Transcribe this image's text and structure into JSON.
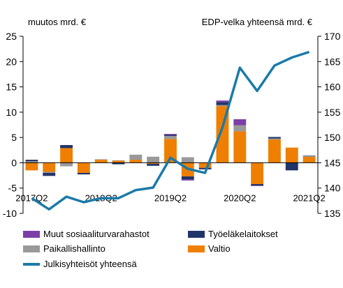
{
  "chart_data": {
    "type": "bar",
    "stacked": true,
    "left_axis": {
      "label": "muutos mrd. €",
      "ylim": [
        -10,
        25
      ],
      "ticks": [
        -10,
        -5,
        0,
        5,
        10,
        15,
        20,
        25
      ]
    },
    "right_axis": {
      "label": "EDP-velka yhteensä  mrd. €",
      "ylim": [
        135,
        170
      ],
      "ticks": [
        135,
        140,
        145,
        150,
        155,
        160,
        165,
        170
      ]
    },
    "categories": [
      "2017Q2",
      "2017Q3",
      "2017Q4",
      "2018Q1",
      "2018Q2",
      "2018Q3",
      "2018Q4",
      "2019Q1",
      "2019Q2",
      "2019Q3",
      "2019Q4",
      "2020Q1",
      "2020Q2",
      "2020Q3",
      "2020Q4",
      "2021Q1",
      "2021Q2"
    ],
    "x_tick_labels": [
      {
        "index": 0,
        "label": "2017Q2"
      },
      {
        "index": 4,
        "label": "2018Q2"
      },
      {
        "index": 8,
        "label": "2019Q2"
      },
      {
        "index": 12,
        "label": "2020Q2"
      },
      {
        "index": 16,
        "label": "2021Q2"
      }
    ],
    "series": [
      {
        "name": "Valtio",
        "color": "#ee7f00",
        "axis": "left",
        "values": [
          -1.5,
          -1.8,
          2.9,
          -2.0,
          0.6,
          0.4,
          0.6,
          -0.2,
          4.7,
          -2.7,
          -1.0,
          11.2,
          6.2,
          -4.2,
          4.6,
          3.0,
          1.2
        ]
      },
      {
        "name": "Paikallishallinto",
        "color": "#999999",
        "axis": "left",
        "values": [
          0.3,
          -0.2,
          -0.7,
          0.0,
          0.1,
          0.1,
          1.0,
          1.2,
          0.6,
          1.1,
          0.0,
          0.2,
          1.2,
          0.0,
          0.2,
          0.0,
          0.1
        ]
      },
      {
        "name": "Työeläkelaitokset",
        "color": "#223569",
        "axis": "left",
        "values": [
          0.3,
          -0.6,
          0.6,
          -0.3,
          0.0,
          -0.3,
          0.0,
          -0.4,
          0.2,
          -0.6,
          -0.3,
          0.6,
          0.0,
          -0.3,
          0.3,
          -1.5,
          0.1
        ]
      },
      {
        "name": "Muut sosiaaliturvarahastot",
        "color": "#7a3fa8",
        "axis": "left",
        "values": [
          0.0,
          0.0,
          0.0,
          0.0,
          0.0,
          0.0,
          0.0,
          0.0,
          0.2,
          -0.2,
          0.0,
          0.3,
          1.2,
          -0.1,
          0.0,
          0.0,
          0.0
        ]
      },
      {
        "name": "Julkisyhteisöt yhteensä",
        "color": "#1b7aa8",
        "axis": "right",
        "type": "line",
        "values": [
          138.0,
          135.8,
          138.3,
          137.2,
          138.0,
          138.0,
          139.6,
          140.1,
          146.0,
          143.8,
          143.0,
          152.0,
          163.8,
          159.2,
          164.2,
          165.8,
          166.9
        ]
      }
    ],
    "legend": {
      "placement": "bottom",
      "order": [
        "Muut sosiaaliturvarahastot",
        "Työeläkelaitokset",
        "Paikallishallinto",
        "Valtio",
        "Julkisyhteisöt yhteensä"
      ]
    },
    "grid": false
  }
}
